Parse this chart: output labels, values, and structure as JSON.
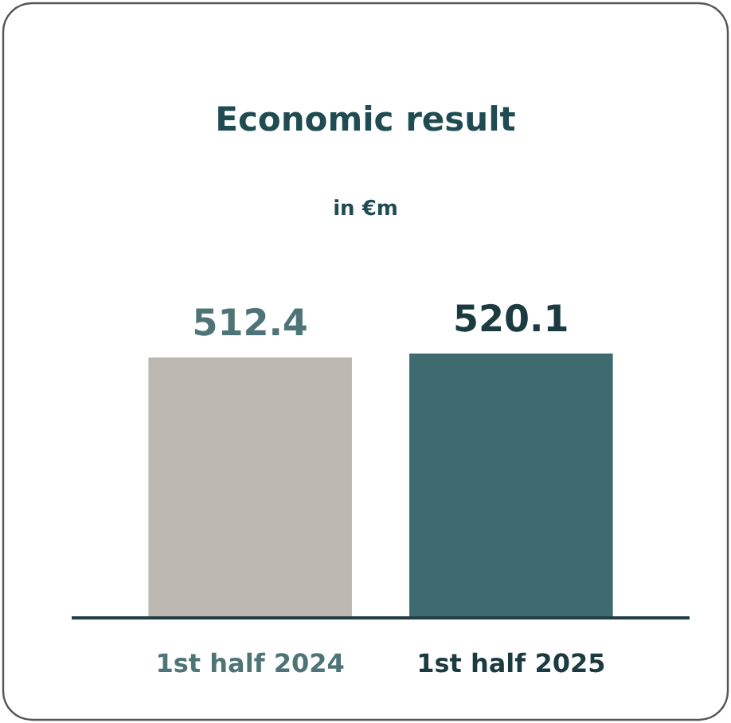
{
  "chart_data": {
    "type": "bar",
    "title": "Economic result",
    "subtitle": "in €m",
    "categories": [
      "1st half 2024",
      "1st half 2025"
    ],
    "values": [
      512.4,
      520.1
    ],
    "colors": [
      "#bdb8b1",
      "#3f6b70"
    ],
    "data_labels": true
  }
}
